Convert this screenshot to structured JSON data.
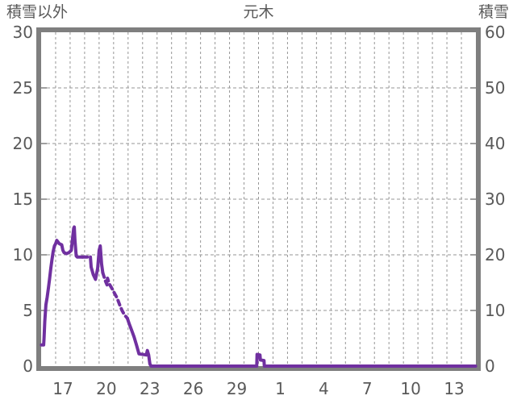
{
  "header": {
    "left_axis_title": "積雪以外",
    "chart_title": "元木",
    "right_axis_title": "積雪"
  },
  "colors": {
    "line": "#7030a0",
    "border": "#7f7f7f",
    "grid": "#969696",
    "text": "#595959",
    "background": "#ffffff"
  },
  "chart_data": {
    "type": "line",
    "title": "元木",
    "legend": "none",
    "grid": "dashed, vertical every 1 day, horizontal every 5 left-units",
    "left_axis": {
      "label": "積雪以外",
      "range": [
        0,
        30
      ],
      "ticks": [
        0,
        5,
        10,
        15,
        20,
        25,
        30
      ]
    },
    "right_axis": {
      "label": "積雪",
      "range": [
        0,
        60
      ],
      "ticks": [
        0,
        10,
        20,
        30,
        40,
        50,
        60
      ]
    },
    "x_axis": {
      "range_days": [
        0,
        30
      ],
      "tick_labels": [
        "17",
        "20",
        "23",
        "26",
        "29",
        "1",
        "4",
        "7",
        "10",
        "13"
      ],
      "tick_positions_days": [
        1.5,
        4.5,
        7.5,
        10.5,
        13.5,
        16.5,
        19.5,
        22.5,
        25.5,
        28.5
      ],
      "gridline_every_days": 1
    },
    "series": [
      {
        "name": "積雪",
        "color": "#7030a0",
        "units": "left-axis (0-30)",
        "segments": [
          {
            "style": "solid",
            "points": [
              [
                0.02,
                1.9
              ],
              [
                0.17,
                1.9
              ],
              [
                0.2,
                2.5
              ],
              [
                0.25,
                4.0
              ],
              [
                0.33,
                5.5
              ],
              [
                0.42,
                6.2
              ],
              [
                0.5,
                7.0
              ],
              [
                0.58,
                7.8
              ],
              [
                0.67,
                8.8
              ],
              [
                0.75,
                9.6
              ],
              [
                0.83,
                10.3
              ],
              [
                0.92,
                10.8
              ],
              [
                1.0,
                11.0
              ],
              [
                1.08,
                11.3
              ],
              [
                1.25,
                11.0
              ],
              [
                1.42,
                10.9
              ],
              [
                1.5,
                10.4
              ],
              [
                1.58,
                10.2
              ],
              [
                1.75,
                10.1
              ],
              [
                1.92,
                10.2
              ],
              [
                2.08,
                10.4
              ],
              [
                2.17,
                11.5
              ],
              [
                2.25,
                12.4
              ],
              [
                2.29,
                12.5
              ],
              [
                2.33,
                11.3
              ],
              [
                2.42,
                9.9
              ],
              [
                2.5,
                9.8
              ],
              [
                2.85,
                9.8
              ]
            ]
          },
          {
            "style": "dashed",
            "points": [
              [
                2.85,
                9.8
              ],
              [
                3.4,
                9.8
              ]
            ]
          },
          {
            "style": "solid",
            "points": [
              [
                3.4,
                9.8
              ],
              [
                3.45,
                8.9
              ],
              [
                3.6,
                8.2
              ],
              [
                3.75,
                7.8
              ],
              [
                3.9,
                8.8
              ],
              [
                4.0,
                10.4
              ],
              [
                4.08,
                10.8
              ],
              [
                4.17,
                9.2
              ],
              [
                4.25,
                8.4
              ]
            ]
          },
          {
            "style": "dashed",
            "points": [
              [
                4.25,
                8.4
              ],
              [
                4.42,
                7.7
              ],
              [
                4.55,
                7.3
              ],
              [
                4.58,
                7.9
              ],
              [
                4.7,
                7.4
              ],
              [
                4.92,
                6.9
              ],
              [
                5.08,
                6.5
              ],
              [
                5.25,
                6.1
              ],
              [
                5.42,
                5.5
              ],
              [
                5.58,
                5.0
              ],
              [
                5.75,
                4.6
              ],
              [
                5.95,
                4.3
              ]
            ]
          },
          {
            "style": "solid",
            "points": [
              [
                5.95,
                4.3
              ],
              [
                6.08,
                3.8
              ],
              [
                6.25,
                3.2
              ],
              [
                6.42,
                2.6
              ],
              [
                6.58,
                1.9
              ],
              [
                6.75,
                1.1
              ],
              [
                7.25,
                1.0
              ],
              [
                7.33,
                1.4
              ],
              [
                7.42,
                1.0
              ],
              [
                7.5,
                0.2
              ],
              [
                7.58,
                0
              ],
              [
                14.88,
                0
              ],
              [
                14.9,
                1.05
              ],
              [
                15.1,
                1.0
              ],
              [
                15.13,
                0.55
              ],
              [
                15.38,
                0.5
              ],
              [
                15.4,
                0
              ],
              [
                29.98,
                0
              ]
            ]
          }
        ]
      }
    ]
  }
}
